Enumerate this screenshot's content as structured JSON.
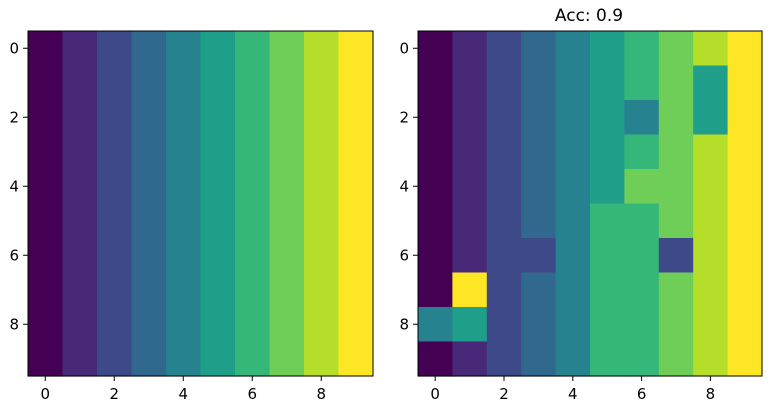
{
  "chart_data": [
    {
      "type": "heatmap",
      "title": "",
      "xlabel": "",
      "ylabel": "",
      "x_ticks": [
        0,
        2,
        4,
        6,
        8
      ],
      "y_ticks": [
        0,
        2,
        4,
        6,
        8
      ],
      "xlim": [
        -0.5,
        9.5
      ],
      "ylim": [
        9.5,
        -0.5
      ],
      "colormap": "viridis",
      "value_range": [
        0,
        9
      ],
      "grid": false,
      "values": [
        [
          0,
          1,
          2,
          3,
          4,
          5,
          6,
          7,
          8,
          9
        ],
        [
          0,
          1,
          2,
          3,
          4,
          5,
          6,
          7,
          8,
          9
        ],
        [
          0,
          1,
          2,
          3,
          4,
          5,
          6,
          7,
          8,
          9
        ],
        [
          0,
          1,
          2,
          3,
          4,
          5,
          6,
          7,
          8,
          9
        ],
        [
          0,
          1,
          2,
          3,
          4,
          5,
          6,
          7,
          8,
          9
        ],
        [
          0,
          1,
          2,
          3,
          4,
          5,
          6,
          7,
          8,
          9
        ],
        [
          0,
          1,
          2,
          3,
          4,
          5,
          6,
          7,
          8,
          9
        ],
        [
          0,
          1,
          2,
          3,
          4,
          5,
          6,
          7,
          8,
          9
        ],
        [
          0,
          1,
          2,
          3,
          4,
          5,
          6,
          7,
          8,
          9
        ],
        [
          0,
          1,
          2,
          3,
          4,
          5,
          6,
          7,
          8,
          9
        ]
      ]
    },
    {
      "type": "heatmap",
      "title": "Acc: 0.9",
      "xlabel": "",
      "ylabel": "",
      "x_ticks": [
        0,
        2,
        4,
        6,
        8
      ],
      "y_ticks": [
        0,
        2,
        4,
        6,
        8
      ],
      "xlim": [
        -0.5,
        9.5
      ],
      "ylim": [
        9.5,
        -0.5
      ],
      "colormap": "viridis",
      "value_range": [
        0,
        9
      ],
      "grid": false,
      "values": [
        [
          0,
          1,
          2,
          3,
          4,
          5,
          6,
          7,
          8,
          9
        ],
        [
          0,
          1,
          2,
          3,
          4,
          5,
          6,
          7,
          5,
          9
        ],
        [
          0,
          1,
          2,
          3,
          4,
          5,
          4,
          7,
          5,
          9
        ],
        [
          0,
          1,
          2,
          3,
          4,
          5,
          6,
          7,
          8,
          9
        ],
        [
          0,
          1,
          2,
          3,
          4,
          5,
          7,
          7,
          8,
          9
        ],
        [
          0,
          1,
          2,
          3,
          4,
          6,
          6,
          7,
          8,
          9
        ],
        [
          0,
          1,
          2,
          2,
          4,
          6,
          6,
          2,
          8,
          9
        ],
        [
          0,
          9,
          2,
          3,
          4,
          6,
          6,
          7,
          8,
          9
        ],
        [
          4,
          5,
          2,
          3,
          4,
          6,
          6,
          7,
          8,
          9
        ],
        [
          0,
          1,
          2,
          3,
          4,
          6,
          6,
          7,
          8,
          9
        ]
      ]
    }
  ],
  "colors": {
    "viridis_stops": [
      "#440154",
      "#482878",
      "#3e4989",
      "#31688e",
      "#26828e",
      "#1f9e89",
      "#35b779",
      "#6ece58",
      "#b5de2b",
      "#fde725"
    ],
    "axis": "#000000"
  }
}
